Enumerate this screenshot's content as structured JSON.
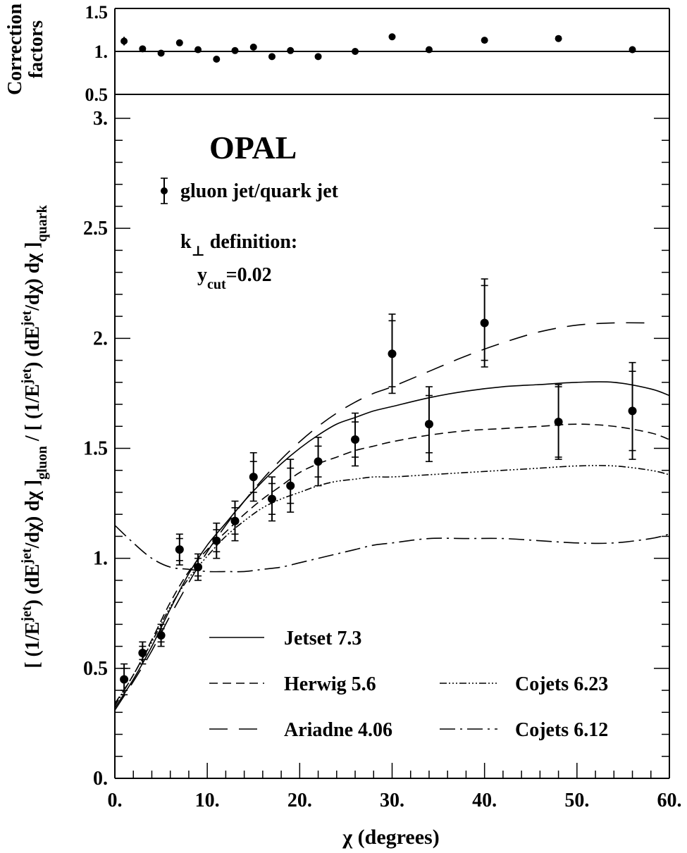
{
  "chart_data": {
    "type": "scatter",
    "xlabel": "χ (degrees)",
    "xlim": [
      0,
      60
    ],
    "x_tick_labels": [
      "0.",
      "10.",
      "20.",
      "30.",
      "40.",
      "50.",
      "60."
    ],
    "experiment": "OPAL",
    "annotation_lines": [
      "k⊥ definition:",
      "ycut=0.02"
    ],
    "top_panel": {
      "ylabel_lines": [
        "Correction",
        "factors"
      ],
      "ylim": [
        0.5,
        1.5
      ],
      "y_tick_labels": [
        "0.5",
        "1.",
        "1.5"
      ],
      "reference_line": 1.0,
      "points": [
        {
          "x": 1,
          "y": 1.12,
          "err": 0.05
        },
        {
          "x": 3,
          "y": 1.03,
          "err": 0.02
        },
        {
          "x": 5,
          "y": 0.98,
          "err": 0.02
        },
        {
          "x": 7,
          "y": 1.1,
          "err": 0.02
        },
        {
          "x": 9,
          "y": 1.02,
          "err": 0.02
        },
        {
          "x": 11,
          "y": 0.91,
          "err": 0.02
        },
        {
          "x": 13,
          "y": 1.01,
          "err": 0.02
        },
        {
          "x": 15,
          "y": 1.05,
          "err": 0.02
        },
        {
          "x": 17,
          "y": 0.94,
          "err": 0.02
        },
        {
          "x": 19,
          "y": 1.01,
          "err": 0.02
        },
        {
          "x": 22,
          "y": 0.94,
          "err": 0.02
        },
        {
          "x": 26,
          "y": 1.0,
          "err": 0.02
        },
        {
          "x": 30,
          "y": 1.17,
          "err": 0.02
        },
        {
          "x": 34,
          "y": 1.02,
          "err": 0.02
        },
        {
          "x": 40,
          "y": 1.13,
          "err": 0.02
        },
        {
          "x": 48,
          "y": 1.15,
          "err": 0.03
        },
        {
          "x": 56,
          "y": 1.02,
          "err": 0.04
        }
      ]
    },
    "main_panel": {
      "ylabel": "[ (1/E^jet) (dE^jet/dχ) dχ ]_gluon / [ (1/E^jet) (dE^jet/dχ) dχ ]_quark",
      "ylabel_parts": {
        "open1": "[ (1/E",
        "sup_jet": "jet",
        "mid1": ") (dE",
        "mid2": "/dχ) dχ ]",
        "sub_gluon": "gluon",
        "slash": " / ",
        "open2": "[ (1/E",
        "sub_quark": "quark"
      },
      "ylim": [
        0,
        3
      ],
      "y_tick_labels": [
        "0.",
        "0.5",
        "1.",
        "1.5",
        "2.",
        "2.5",
        "3."
      ],
      "data_series": {
        "name": "gluon jet/quark jet",
        "points": [
          {
            "x": 1,
            "y": 0.45,
            "err_stat": 0.05,
            "err_tot": 0.07
          },
          {
            "x": 3,
            "y": 0.57,
            "err_stat": 0.03,
            "err_tot": 0.05
          },
          {
            "x": 5,
            "y": 0.65,
            "err_stat": 0.03,
            "err_tot": 0.05
          },
          {
            "x": 7,
            "y": 1.04,
            "err_stat": 0.05,
            "err_tot": 0.07
          },
          {
            "x": 9,
            "y": 0.96,
            "err_stat": 0.04,
            "err_tot": 0.06
          },
          {
            "x": 11,
            "y": 1.08,
            "err_stat": 0.05,
            "err_tot": 0.08
          },
          {
            "x": 13,
            "y": 1.17,
            "err_stat": 0.06,
            "err_tot": 0.09
          },
          {
            "x": 15,
            "y": 1.37,
            "err_stat": 0.07,
            "err_tot": 0.11
          },
          {
            "x": 17,
            "y": 1.27,
            "err_stat": 0.07,
            "err_tot": 0.1
          },
          {
            "x": 19,
            "y": 1.33,
            "err_stat": 0.08,
            "err_tot": 0.12
          },
          {
            "x": 22,
            "y": 1.44,
            "err_stat": 0.07,
            "err_tot": 0.11
          },
          {
            "x": 26,
            "y": 1.54,
            "err_stat": 0.08,
            "err_tot": 0.12
          },
          {
            "x": 30,
            "y": 1.93,
            "err_stat": 0.15,
            "err_tot": 0.18
          },
          {
            "x": 34,
            "y": 1.61,
            "err_stat": 0.13,
            "err_tot": 0.17
          },
          {
            "x": 40,
            "y": 2.07,
            "err_stat": 0.17,
            "err_tot": 0.2
          },
          {
            "x": 48,
            "y": 1.62,
            "err_stat": 0.16,
            "err_tot": 0.17
          },
          {
            "x": 56,
            "y": 1.67,
            "err_stat": 0.18,
            "err_tot": 0.22
          }
        ]
      },
      "model_series": [
        {
          "name": "Jetset 7.3",
          "style": "solid",
          "x": [
            0,
            2,
            4,
            6,
            8,
            10,
            12,
            14,
            16,
            18,
            20,
            22,
            24,
            26,
            28,
            30,
            34,
            38,
            42,
            46,
            50,
            54,
            58,
            60
          ],
          "y": [
            0.32,
            0.45,
            0.6,
            0.77,
            0.93,
            1.06,
            1.16,
            1.26,
            1.35,
            1.43,
            1.5,
            1.56,
            1.61,
            1.64,
            1.67,
            1.69,
            1.73,
            1.76,
            1.78,
            1.79,
            1.8,
            1.8,
            1.77,
            1.74
          ]
        },
        {
          "name": "Herwig 5.6",
          "style": "dashed",
          "x": [
            0,
            2,
            4,
            6,
            8,
            10,
            12,
            14,
            16,
            18,
            20,
            22,
            24,
            26,
            28,
            30,
            34,
            38,
            42,
            46,
            50,
            54,
            58,
            60
          ],
          "y": [
            0.34,
            0.47,
            0.63,
            0.8,
            0.94,
            1.04,
            1.12,
            1.2,
            1.27,
            1.33,
            1.39,
            1.43,
            1.46,
            1.49,
            1.51,
            1.53,
            1.56,
            1.58,
            1.59,
            1.6,
            1.61,
            1.6,
            1.57,
            1.54
          ]
        },
        {
          "name": "Ariadne 4.06",
          "style": "longdash",
          "x": [
            0,
            2,
            4,
            6,
            8,
            10,
            12,
            14,
            16,
            18,
            20,
            22,
            24,
            26,
            28,
            30,
            34,
            38,
            42,
            46,
            50,
            54,
            58
          ],
          "y": [
            0.31,
            0.44,
            0.58,
            0.74,
            0.89,
            1.03,
            1.15,
            1.26,
            1.36,
            1.45,
            1.53,
            1.6,
            1.66,
            1.71,
            1.75,
            1.78,
            1.85,
            1.92,
            1.98,
            2.03,
            2.06,
            2.07,
            2.07
          ]
        },
        {
          "name": "Cojets 6.23",
          "style": "dash-dot-dot",
          "x": [
            0,
            2,
            4,
            6,
            8,
            10,
            12,
            14,
            16,
            18,
            20,
            22,
            24,
            26,
            28,
            30,
            34,
            38,
            42,
            46,
            50,
            54,
            58,
            60
          ],
          "y": [
            0.33,
            0.47,
            0.62,
            0.78,
            0.91,
            1.01,
            1.1,
            1.17,
            1.23,
            1.27,
            1.3,
            1.33,
            1.35,
            1.36,
            1.37,
            1.37,
            1.38,
            1.39,
            1.4,
            1.41,
            1.42,
            1.42,
            1.4,
            1.38
          ]
        },
        {
          "name": "Cojets 6.12",
          "style": "dash-dot",
          "x": [
            0,
            2,
            4,
            6,
            8,
            10,
            12,
            14,
            16,
            18,
            20,
            22,
            24,
            26,
            28,
            30,
            34,
            38,
            42,
            46,
            50,
            54,
            58,
            60
          ],
          "y": [
            1.15,
            1.07,
            1.0,
            0.96,
            0.95,
            0.94,
            0.94,
            0.94,
            0.95,
            0.96,
            0.98,
            1.0,
            1.02,
            1.04,
            1.06,
            1.07,
            1.09,
            1.09,
            1.09,
            1.08,
            1.07,
            1.07,
            1.09,
            1.11
          ]
        }
      ],
      "legend_placement": "lower-right"
    }
  }
}
